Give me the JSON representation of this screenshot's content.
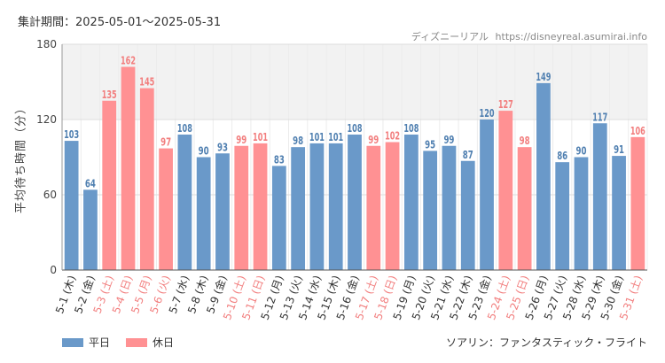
{
  "header": {
    "period": "集計期間：2025-05-01～2025-05-31",
    "site_name": "ディズニーリアル",
    "site_url": "https://disneyreal.asumirai.info"
  },
  "footer": {
    "attraction": "ソアリン：ファンタスティック・フライト"
  },
  "colors": {
    "weekday": "#6a99c9",
    "holiday": "#ff9193",
    "holiday_text": "#f27e7e",
    "weekday_text": "#333333",
    "band": "#f2f2f2",
    "grid": "#dddddd"
  },
  "chart_data": {
    "type": "bar",
    "ylabel": "平均待ち時間（分）",
    "ylim": [
      0,
      180
    ],
    "yticks": [
      0,
      60,
      120,
      180
    ],
    "grid": true,
    "legend": [
      {
        "name": "平日",
        "color": "#6a99c9"
      },
      {
        "name": "休日",
        "color": "#ff9193"
      }
    ],
    "legend_position": "bottom-left",
    "categories": [
      "5-1 (木)",
      "5-2 (金)",
      "5-3 (土)",
      "5-4 (日)",
      "5-5 (月)",
      "5-6 (火)",
      "5-7 (水)",
      "5-8 (木)",
      "5-9 (金)",
      "5-10 (土)",
      "5-11 (日)",
      "5-12 (月)",
      "5-13 (火)",
      "5-14 (水)",
      "5-15 (木)",
      "5-16 (金)",
      "5-17 (土)",
      "5-18 (日)",
      "5-19 (月)",
      "5-20 (火)",
      "5-21 (水)",
      "5-22 (木)",
      "5-23 (金)",
      "5-24 (土)",
      "5-25 (日)",
      "5-26 (月)",
      "5-27 (火)",
      "5-28 (水)",
      "5-29 (木)",
      "5-30 (金)",
      "5-31 (土)"
    ],
    "values": [
      103,
      64,
      135,
      162,
      145,
      97,
      108,
      90,
      93,
      99,
      101,
      83,
      98,
      101,
      101,
      108,
      99,
      102,
      108,
      95,
      99,
      87,
      120,
      127,
      98,
      149,
      86,
      90,
      117,
      91,
      106
    ],
    "day_type": [
      "平日",
      "平日",
      "休日",
      "休日",
      "休日",
      "休日",
      "平日",
      "平日",
      "平日",
      "休日",
      "休日",
      "平日",
      "平日",
      "平日",
      "平日",
      "平日",
      "休日",
      "休日",
      "平日",
      "平日",
      "平日",
      "平日",
      "平日",
      "休日",
      "休日",
      "平日",
      "平日",
      "平日",
      "平日",
      "平日",
      "休日"
    ]
  }
}
